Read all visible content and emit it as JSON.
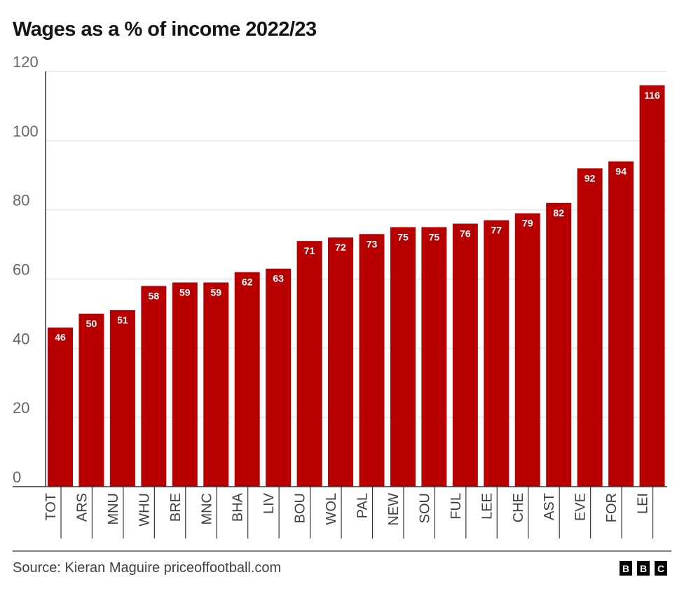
{
  "chart_data": {
    "type": "bar",
    "title": "Wages as a % of income 2022/23",
    "categories": [
      "TOT",
      "ARS",
      "MNU",
      "WHU",
      "BRE",
      "MNC",
      "BHA",
      "LIV",
      "BOU",
      "WOL",
      "PAL",
      "NEW",
      "SOU",
      "FUL",
      "LEE",
      "CHE",
      "AST",
      "EVE",
      "FOR",
      "LEI"
    ],
    "values": [
      46,
      50,
      51,
      58,
      59,
      59,
      62,
      63,
      71,
      72,
      73,
      75,
      75,
      76,
      77,
      79,
      82,
      92,
      94,
      116
    ],
    "xlabel": "",
    "ylabel": "",
    "ylim": [
      0,
      120
    ],
    "yticks": [
      0,
      20,
      40,
      60,
      80,
      100,
      120
    ],
    "grid": true,
    "bar_color": "#b80000",
    "data_labels": true
  },
  "footer": {
    "source": "Source: Kieran Maguire priceoffootball.com",
    "logo": [
      "B",
      "B",
      "C"
    ]
  }
}
